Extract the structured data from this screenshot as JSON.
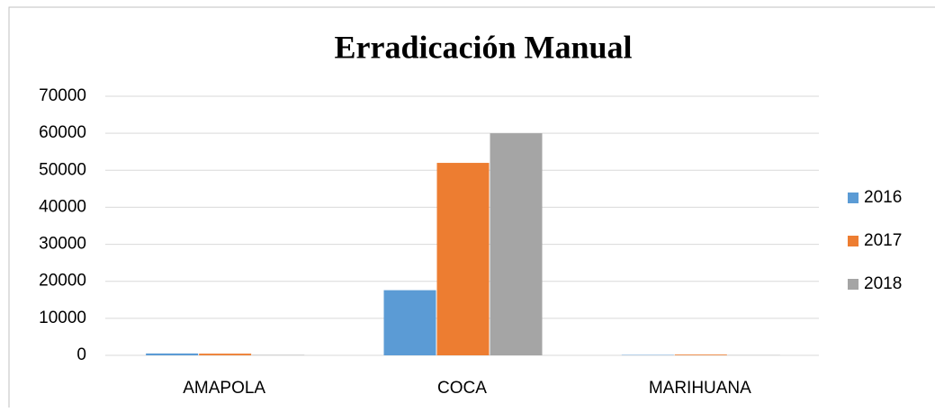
{
  "chart_data": {
    "type": "bar",
    "title": "Erradicación Manual",
    "categories": [
      "AMAPOLA",
      "COCA",
      "MARIHUANA"
    ],
    "series": [
      {
        "name": "2016",
        "color": "#5b9bd5",
        "values": [
          500,
          17600,
          100
        ]
      },
      {
        "name": "2017",
        "color": "#ed7d31",
        "values": [
          450,
          52000,
          200
        ]
      },
      {
        "name": "2018",
        "color": "#a5a5a5",
        "values": [
          100,
          60000,
          50
        ]
      }
    ],
    "ylim": [
      0,
      70000
    ],
    "yticks": [
      0,
      10000,
      20000,
      30000,
      40000,
      50000,
      60000,
      70000
    ],
    "grid": true,
    "legend": "right"
  }
}
